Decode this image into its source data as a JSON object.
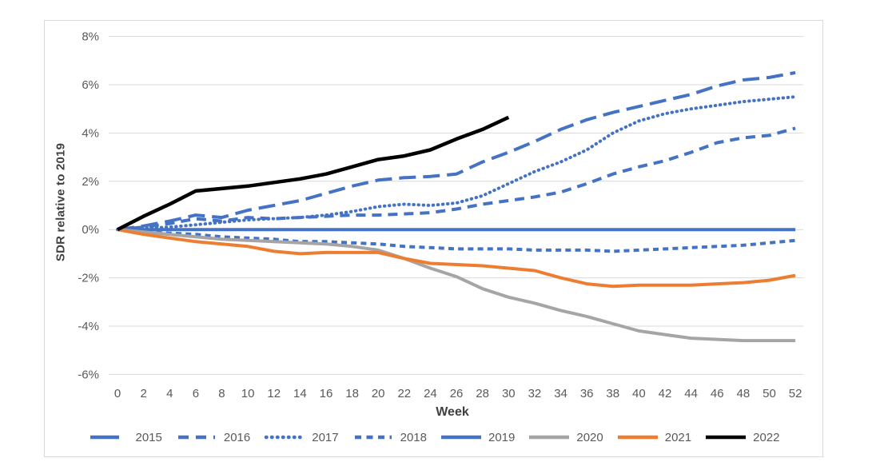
{
  "chart": {
    "y_axis_title": "SDR relative to 2019",
    "x_axis_title": "Week"
  },
  "chart_data": {
    "type": "line",
    "title": "",
    "xlabel": "Week",
    "ylabel": "SDR relative to 2019",
    "grid": true,
    "legend_position": "bottom",
    "xlim": [
      0,
      52
    ],
    "ylim": [
      -6.9,
      8.9
    ],
    "x_tick_labels": [
      0,
      2,
      4,
      6,
      8,
      10,
      12,
      14,
      16,
      18,
      20,
      22,
      24,
      26,
      28,
      30,
      32,
      34,
      36,
      38,
      40,
      42,
      44,
      46,
      48,
      50,
      52
    ],
    "y_tick_labels": [
      "8%",
      "6%",
      "4%",
      "2%",
      "0%",
      "-2%",
      "-4%",
      "-6%"
    ],
    "y_tick_values": [
      8,
      6,
      4,
      2,
      0,
      -2,
      -4,
      -6
    ],
    "x": [
      0,
      2,
      4,
      6,
      8,
      10,
      12,
      14,
      16,
      18,
      20,
      22,
      24,
      26,
      28,
      30,
      32,
      34,
      36,
      38,
      40,
      42,
      44,
      46,
      48,
      50,
      52
    ],
    "unit": "percent",
    "series": [
      {
        "name": "2015",
        "color": "#4472C4",
        "line_style": "long-dash",
        "values": [
          0,
          0.15,
          0.35,
          0.6,
          0.5,
          0.8,
          1.0,
          1.2,
          1.5,
          1.8,
          2.05,
          2.15,
          2.2,
          2.3,
          2.8,
          3.2,
          3.65,
          4.15,
          4.55,
          4.85,
          5.1,
          5.35,
          5.6,
          5.95,
          6.2,
          6.3,
          6.5
        ]
      },
      {
        "name": "2016",
        "color": "#4472C4",
        "line_style": "dash",
        "values": [
          0,
          0.1,
          0.25,
          0.45,
          0.35,
          0.5,
          0.45,
          0.5,
          0.55,
          0.6,
          0.6,
          0.65,
          0.7,
          0.85,
          1.05,
          1.2,
          1.35,
          1.55,
          1.9,
          2.3,
          2.6,
          2.85,
          3.2,
          3.6,
          3.8,
          3.9,
          4.2
        ]
      },
      {
        "name": "2017",
        "color": "#4472C4",
        "line_style": "dot",
        "values": [
          0,
          0.05,
          0.1,
          0.2,
          0.3,
          0.4,
          0.45,
          0.5,
          0.6,
          0.75,
          0.95,
          1.05,
          1.0,
          1.1,
          1.4,
          1.9,
          2.4,
          2.8,
          3.3,
          4.0,
          4.5,
          4.8,
          5.0,
          5.15,
          5.3,
          5.4,
          5.5
        ]
      },
      {
        "name": "2018",
        "color": "#4472C4",
        "line_style": "short-dash",
        "values": [
          0,
          -0.1,
          -0.15,
          -0.2,
          -0.3,
          -0.35,
          -0.4,
          -0.5,
          -0.5,
          -0.55,
          -0.6,
          -0.7,
          -0.75,
          -0.8,
          -0.8,
          -0.8,
          -0.85,
          -0.85,
          -0.85,
          -0.9,
          -0.85,
          -0.8,
          -0.75,
          -0.7,
          -0.65,
          -0.55,
          -0.45
        ]
      },
      {
        "name": "2019",
        "color": "#4472C4",
        "line_style": "solid",
        "values": [
          0,
          0,
          0,
          0,
          0,
          0,
          0,
          0,
          0,
          0,
          0,
          0,
          0,
          0,
          0,
          0,
          0,
          0,
          0,
          0,
          0,
          0,
          0,
          0,
          0,
          0,
          0
        ]
      },
      {
        "name": "2020",
        "color": "#A5A5A5",
        "line_style": "solid",
        "values": [
          0,
          -0.1,
          -0.2,
          -0.3,
          -0.4,
          -0.45,
          -0.5,
          -0.55,
          -0.6,
          -0.7,
          -0.85,
          -1.2,
          -1.6,
          -1.95,
          -2.45,
          -2.8,
          -3.05,
          -3.35,
          -3.6,
          -3.9,
          -4.2,
          -4.35,
          -4.5,
          -4.55,
          -4.6,
          -4.6,
          -4.6
        ]
      },
      {
        "name": "2021",
        "color": "#ED7D31",
        "line_style": "solid",
        "values": [
          0,
          -0.2,
          -0.35,
          -0.5,
          -0.6,
          -0.7,
          -0.9,
          -1.0,
          -0.95,
          -0.95,
          -0.95,
          -1.2,
          -1.4,
          -1.45,
          -1.5,
          -1.6,
          -1.7,
          -2.0,
          -2.25,
          -2.35,
          -2.3,
          -2.3,
          -2.3,
          -2.25,
          -2.2,
          -2.1,
          -1.9
        ]
      },
      {
        "name": "2022",
        "color": "#000000",
        "line_style": "solid",
        "values": [
          0,
          0.55,
          1.05,
          1.6,
          1.7,
          1.8,
          1.95,
          2.1,
          2.3,
          2.6,
          2.9,
          3.05,
          3.3,
          3.75,
          4.15,
          4.65
        ]
      }
    ]
  }
}
